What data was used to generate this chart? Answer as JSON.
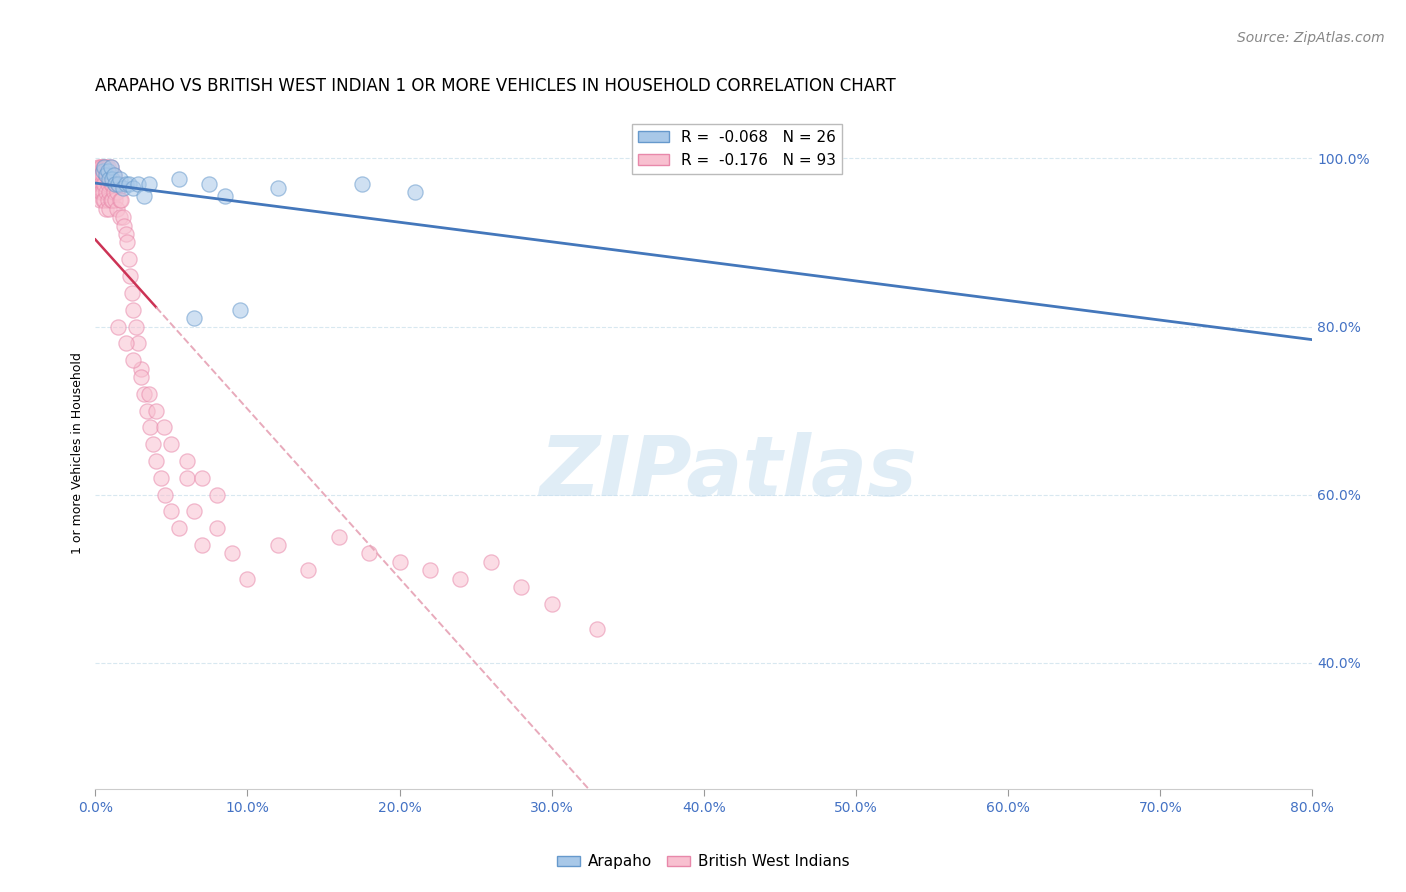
{
  "title": "ARAPAHO VS BRITISH WEST INDIAN 1 OR MORE VEHICLES IN HOUSEHOLD CORRELATION CHART",
  "source": "Source: ZipAtlas.com",
  "ylabel_label": "1 or more Vehicles in Household",
  "xlim": [
    0.0,
    0.8
  ],
  "ylim": [
    0.25,
    1.05
  ],
  "x_tick_vals": [
    0.0,
    0.1,
    0.2,
    0.3,
    0.4,
    0.5,
    0.6,
    0.7,
    0.8
  ],
  "x_tick_labels": [
    "0.0%",
    "10.0%",
    "20.0%",
    "30.0%",
    "40.0%",
    "50.0%",
    "60.0%",
    "70.0%",
    "80.0%"
  ],
  "y_tick_vals": [
    0.4,
    0.6,
    0.8,
    1.0
  ],
  "y_tick_labels": [
    "40.0%",
    "60.0%",
    "80.0%",
    "100.0%"
  ],
  "legend_label_arapaho": "R =  -0.068   N = 26",
  "legend_label_bwi": "R =  -0.176   N = 93",
  "arapaho_x": [
    0.005,
    0.006,
    0.007,
    0.008,
    0.009,
    0.01,
    0.011,
    0.012,
    0.013,
    0.015,
    0.016,
    0.018,
    0.02,
    0.022,
    0.025,
    0.028,
    0.032,
    0.035,
    0.055,
    0.065,
    0.075,
    0.085,
    0.095,
    0.12,
    0.175,
    0.21
  ],
  "arapaho_y": [
    0.985,
    0.99,
    0.98,
    0.985,
    0.975,
    0.99,
    0.975,
    0.98,
    0.97,
    0.97,
    0.975,
    0.965,
    0.97,
    0.97,
    0.965,
    0.97,
    0.955,
    0.97,
    0.975,
    0.81,
    0.97,
    0.955,
    0.82,
    0.965,
    0.97,
    0.96
  ],
  "bwi_x": [
    0.002,
    0.002,
    0.002,
    0.003,
    0.003,
    0.003,
    0.003,
    0.003,
    0.004,
    0.004,
    0.004,
    0.004,
    0.005,
    0.005,
    0.005,
    0.005,
    0.005,
    0.006,
    0.006,
    0.006,
    0.007,
    0.007,
    0.007,
    0.007,
    0.008,
    0.008,
    0.008,
    0.009,
    0.009,
    0.009,
    0.01,
    0.01,
    0.01,
    0.011,
    0.011,
    0.012,
    0.012,
    0.013,
    0.013,
    0.014,
    0.014,
    0.015,
    0.016,
    0.016,
    0.017,
    0.018,
    0.019,
    0.02,
    0.021,
    0.022,
    0.023,
    0.024,
    0.025,
    0.027,
    0.028,
    0.03,
    0.032,
    0.034,
    0.036,
    0.038,
    0.04,
    0.043,
    0.046,
    0.05,
    0.055,
    0.06,
    0.065,
    0.07,
    0.08,
    0.09,
    0.1,
    0.12,
    0.14,
    0.16,
    0.18,
    0.2,
    0.22,
    0.24,
    0.26,
    0.28,
    0.3,
    0.33,
    0.015,
    0.02,
    0.025,
    0.03,
    0.035,
    0.04,
    0.045,
    0.05,
    0.06,
    0.07,
    0.08
  ],
  "bwi_y": [
    0.99,
    0.98,
    0.97,
    0.99,
    0.98,
    0.97,
    0.96,
    0.95,
    0.99,
    0.98,
    0.97,
    0.96,
    0.99,
    0.98,
    0.97,
    0.96,
    0.95,
    0.99,
    0.97,
    0.95,
    0.99,
    0.98,
    0.96,
    0.94,
    0.99,
    0.97,
    0.95,
    0.98,
    0.96,
    0.94,
    0.99,
    0.97,
    0.95,
    0.97,
    0.95,
    0.98,
    0.96,
    0.97,
    0.95,
    0.96,
    0.94,
    0.97,
    0.95,
    0.93,
    0.95,
    0.93,
    0.92,
    0.91,
    0.9,
    0.88,
    0.86,
    0.84,
    0.82,
    0.8,
    0.78,
    0.75,
    0.72,
    0.7,
    0.68,
    0.66,
    0.64,
    0.62,
    0.6,
    0.58,
    0.56,
    0.62,
    0.58,
    0.54,
    0.56,
    0.53,
    0.5,
    0.54,
    0.51,
    0.55,
    0.53,
    0.52,
    0.51,
    0.5,
    0.52,
    0.49,
    0.47,
    0.44,
    0.8,
    0.78,
    0.76,
    0.74,
    0.72,
    0.7,
    0.68,
    0.66,
    0.64,
    0.62,
    0.6
  ],
  "arapaho_color": "#a8c8e8",
  "arapaho_edge": "#6699cc",
  "bwi_color": "#f8c0d0",
  "bwi_edge": "#e888aa",
  "trend_arapaho_color": "#4477bb",
  "trend_bwi_color": "#cc3355",
  "trend_bwi_color2": "#e8aabb",
  "marker_size": 120,
  "alpha": 0.55,
  "title_fontsize": 12,
  "axis_label_fontsize": 9,
  "tick_fontsize": 10,
  "legend_fontsize": 11,
  "source_fontsize": 10,
  "grid_color": "#d8e8f0",
  "grid_style": "--",
  "watermark_text": "ZIPatlas",
  "watermark_color": "#c8dff0"
}
